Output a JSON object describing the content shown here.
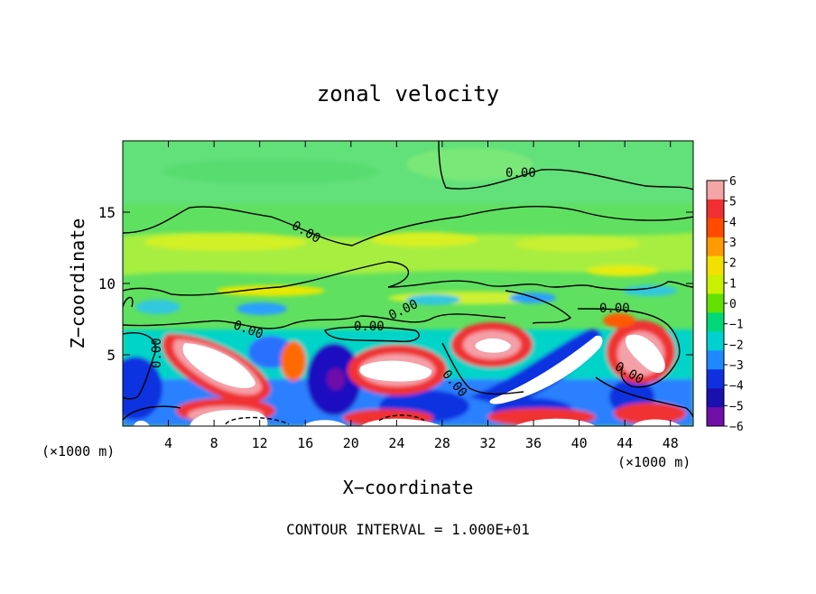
{
  "chart_data": {
    "type": "heatmap",
    "title": "zonal velocity",
    "xlabel": "X−coordinate",
    "ylabel": "Z−coordinate",
    "x_unit_left": "(×1000 m)",
    "x_unit_right": "(×1000 m)",
    "xlim": [
      0,
      50
    ],
    "ylim": [
      0,
      20
    ],
    "x_ticks": [
      4,
      8,
      12,
      16,
      20,
      24,
      28,
      32,
      36,
      40,
      44,
      48
    ],
    "y_ticks": [
      5,
      10,
      15
    ],
    "colorbar": {
      "ticks": [
        "6",
        "5",
        "4",
        "3",
        "2",
        "1",
        "0",
        "−1",
        "−2",
        "−3",
        "−4",
        "−5",
        "−6"
      ],
      "colors": [
        "#f4a6a6",
        "#f03030",
        "#ff4a00",
        "#ff9a00",
        "#f4e000",
        "#c8f000",
        "#62e000",
        "#00d878",
        "#00d0d0",
        "#2088ff",
        "#1030e0",
        "#1a10b0",
        "#7010a8"
      ]
    },
    "contour_labels": [
      "0.00",
      "0.00",
      "0.00",
      "0.00",
      "0.00",
      "0.00",
      "0.00",
      "0.00",
      "0.00",
      "0.00"
    ],
    "footer": "CONTOUR INTERVAL = 1.000E+01"
  }
}
